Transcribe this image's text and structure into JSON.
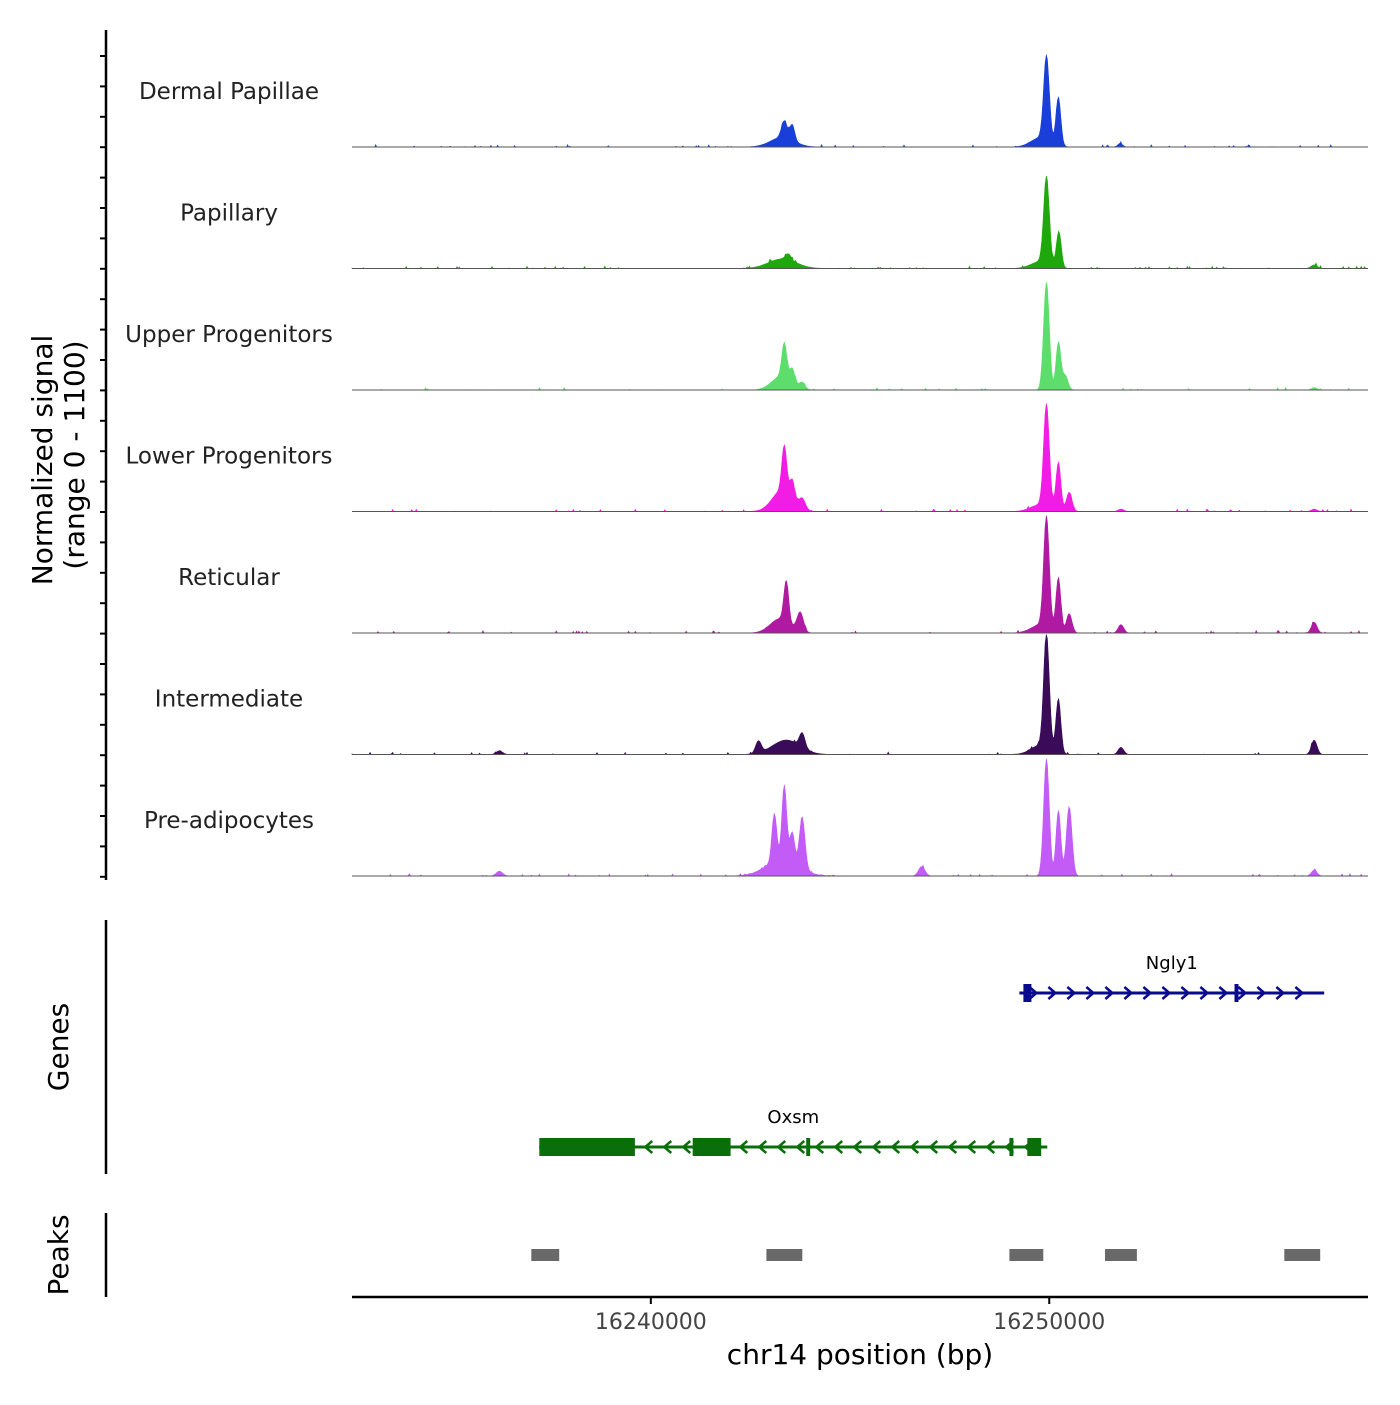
{
  "chart_data": {
    "type": "area",
    "title": "",
    "signal_axis_label_line1": "Normalized signal",
    "signal_axis_label_line2": "(range 0 - 1100)",
    "signal_range": [
      0,
      1100
    ],
    "xlabel": "chr14 position (bp)",
    "x_range": [
      16232500,
      16258000
    ],
    "x_ticks": [
      {
        "value": 16240000,
        "label": "16240000"
      },
      {
        "value": 16250000,
        "label": "16250000"
      }
    ],
    "peak_shape": [
      {
        "center": 16242800,
        "width": 80,
        "amp": 0.11
      },
      {
        "center": 16243000,
        "width": 70,
        "amp": 0.14
      },
      {
        "center": 16243350,
        "width": 80,
        "amp": 0.12
      },
      {
        "center": 16243700,
        "width": 90,
        "amp": 0.1
      },
      {
        "center": 16244050,
        "width": 100,
        "amp": 0.08
      },
      {
        "center": 16249900,
        "width": 70,
        "amp": 0.62
      },
      {
        "center": 16250200,
        "width": 70,
        "amp": 0.3
      },
      {
        "center": 16250500,
        "width": 70,
        "amp": 0.14
      },
      {
        "center": 16251800,
        "width": 80,
        "amp": 0.04
      },
      {
        "center": 16256500,
        "width": 80,
        "amp": 0.04
      }
    ],
    "series": [
      {
        "name": "Dermal Papillae",
        "color": "#1a3fd9",
        "peaks": [
          {
            "center": 16243300,
            "width": 300,
            "amp": 0.08
          },
          {
            "center": 16243350,
            "width": 70,
            "amp": 0.14
          },
          {
            "center": 16243550,
            "width": 60,
            "amp": 0.13
          },
          {
            "center": 16249930,
            "width": 70,
            "amp": 0.7
          },
          {
            "center": 16250230,
            "width": 60,
            "amp": 0.4
          },
          {
            "center": 16249800,
            "width": 250,
            "amp": 0.08
          },
          {
            "center": 16251780,
            "width": 60,
            "amp": 0.03
          }
        ]
      },
      {
        "name": "Papillary",
        "color": "#1fa80c",
        "peaks": [
          {
            "center": 16243300,
            "width": 350,
            "amp": 0.08
          },
          {
            "center": 16243450,
            "width": 70,
            "amp": 0.05
          },
          {
            "center": 16249930,
            "width": 70,
            "amp": 0.72
          },
          {
            "center": 16250240,
            "width": 60,
            "amp": 0.3
          },
          {
            "center": 16249800,
            "width": 250,
            "amp": 0.06
          },
          {
            "center": 16256650,
            "width": 80,
            "amp": 0.03
          }
        ]
      },
      {
        "name": "Upper Progenitors",
        "color": "#5ddd6b",
        "peaks": [
          {
            "center": 16243300,
            "width": 250,
            "amp": 0.12
          },
          {
            "center": 16243350,
            "width": 60,
            "amp": 0.28
          },
          {
            "center": 16243550,
            "width": 60,
            "amp": 0.11
          },
          {
            "center": 16243800,
            "width": 70,
            "amp": 0.05
          },
          {
            "center": 16249930,
            "width": 70,
            "amp": 0.9
          },
          {
            "center": 16250230,
            "width": 60,
            "amp": 0.4
          },
          {
            "center": 16250400,
            "width": 70,
            "amp": 0.12
          },
          {
            "center": 16256650,
            "width": 70,
            "amp": 0.02
          }
        ]
      },
      {
        "name": "Lower Progenitors",
        "color": "#f21de5",
        "peaks": [
          {
            "center": 16243300,
            "width": 250,
            "amp": 0.18
          },
          {
            "center": 16243350,
            "width": 60,
            "amp": 0.38
          },
          {
            "center": 16243550,
            "width": 60,
            "amp": 0.16
          },
          {
            "center": 16243800,
            "width": 80,
            "amp": 0.09
          },
          {
            "center": 16249930,
            "width": 70,
            "amp": 0.85
          },
          {
            "center": 16250230,
            "width": 60,
            "amp": 0.4
          },
          {
            "center": 16250500,
            "width": 70,
            "amp": 0.16
          },
          {
            "center": 16249800,
            "width": 250,
            "amp": 0.06
          },
          {
            "center": 16251800,
            "width": 70,
            "amp": 0.02
          },
          {
            "center": 16256650,
            "width": 70,
            "amp": 0.02
          }
        ]
      },
      {
        "name": "Reticular",
        "color": "#b01aa3",
        "peaks": [
          {
            "center": 16243250,
            "width": 250,
            "amp": 0.12
          },
          {
            "center": 16243400,
            "width": 60,
            "amp": 0.34
          },
          {
            "center": 16243750,
            "width": 80,
            "amp": 0.16
          },
          {
            "center": 16249930,
            "width": 70,
            "amp": 0.92
          },
          {
            "center": 16250230,
            "width": 60,
            "amp": 0.45
          },
          {
            "center": 16250500,
            "width": 70,
            "amp": 0.16
          },
          {
            "center": 16249800,
            "width": 250,
            "amp": 0.07
          },
          {
            "center": 16251800,
            "width": 70,
            "amp": 0.07
          },
          {
            "center": 16256650,
            "width": 70,
            "amp": 0.09
          }
        ]
      },
      {
        "name": "Intermediate",
        "color": "#3a0b59",
        "peaks": [
          {
            "center": 16243400,
            "width": 350,
            "amp": 0.12
          },
          {
            "center": 16242700,
            "width": 70,
            "amp": 0.1
          },
          {
            "center": 16243800,
            "width": 70,
            "amp": 0.12
          },
          {
            "center": 16249930,
            "width": 70,
            "amp": 0.95
          },
          {
            "center": 16250230,
            "width": 60,
            "amp": 0.45
          },
          {
            "center": 16249800,
            "width": 250,
            "amp": 0.08
          },
          {
            "center": 16251800,
            "width": 70,
            "amp": 0.06
          },
          {
            "center": 16256650,
            "width": 70,
            "amp": 0.12
          },
          {
            "center": 16236200,
            "width": 80,
            "amp": 0.03
          }
        ]
      },
      {
        "name": "Pre-adipocytes",
        "color": "#c35cf7",
        "peaks": [
          {
            "center": 16243300,
            "width": 400,
            "amp": 0.14
          },
          {
            "center": 16243100,
            "width": 60,
            "amp": 0.4
          },
          {
            "center": 16243350,
            "width": 60,
            "amp": 0.62
          },
          {
            "center": 16243550,
            "width": 60,
            "amp": 0.25
          },
          {
            "center": 16243800,
            "width": 70,
            "amp": 0.42
          },
          {
            "center": 16246800,
            "width": 80,
            "amp": 0.08
          },
          {
            "center": 16249930,
            "width": 70,
            "amp": 0.98
          },
          {
            "center": 16250230,
            "width": 60,
            "amp": 0.55
          },
          {
            "center": 16250500,
            "width": 70,
            "amp": 0.58
          },
          {
            "center": 16256650,
            "width": 70,
            "amp": 0.05
          },
          {
            "center": 16236200,
            "width": 80,
            "amp": 0.04
          }
        ]
      }
    ],
    "genes_label": "Genes",
    "genes": [
      {
        "name": "Ngly1",
        "strand": "+",
        "start": 16249250,
        "end": 16256900,
        "color": "#0a0a8c",
        "exons": [
          [
            16249350,
            16249550
          ],
          [
            16254650,
            16254750
          ]
        ]
      },
      {
        "name": "Oxsm",
        "strand": "-",
        "start": 16237200,
        "end": 16249950,
        "color": "#0a6f0a",
        "exons": [
          [
            16237200,
            16239600
          ],
          [
            16241050,
            16242000
          ],
          [
            16243900,
            16244000
          ],
          [
            16249000,
            16249100
          ],
          [
            16249450,
            16249800
          ]
        ]
      }
    ],
    "peaks_label": "Peaks",
    "peaks": [
      [
        16237000,
        16237700
      ],
      [
        16242900,
        16243800
      ],
      [
        16249000,
        16249850
      ],
      [
        16251400,
        16252200
      ],
      [
        16255900,
        16256800
      ]
    ]
  }
}
